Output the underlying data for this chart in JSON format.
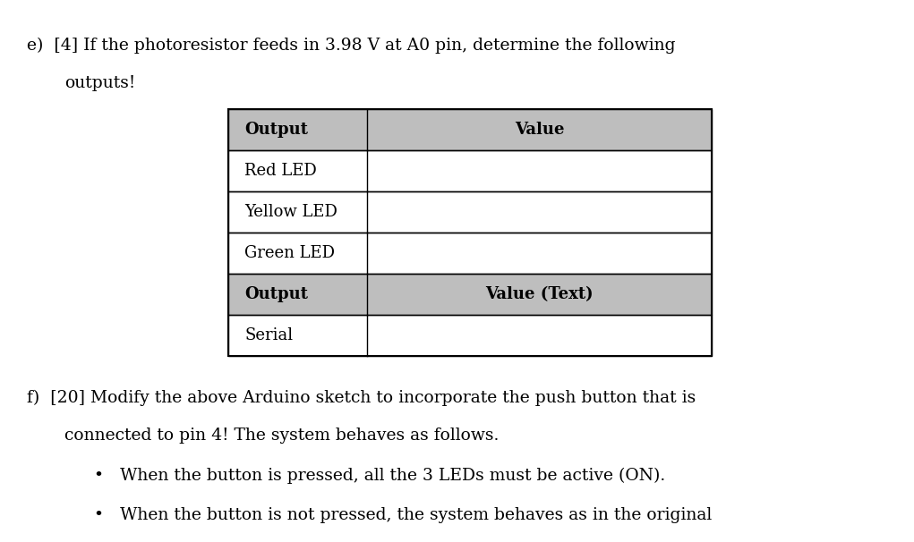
{
  "background_color": "#ffffff",
  "table_header_bg": "#bebebe",
  "table_row_bg": "#ffffff",
  "table_border_color": "#000000",
  "header_row": [
    "Output",
    "Value"
  ],
  "data_rows": [
    [
      "Red LED",
      ""
    ],
    [
      "Yellow LED",
      ""
    ],
    [
      "Green LED",
      ""
    ]
  ],
  "subheader_row": [
    "Output",
    "Value (Text)"
  ],
  "serial_row": [
    "Serial",
    ""
  ],
  "font_size_text": 13.5,
  "font_size_table": 13,
  "fig_width": 10.21,
  "fig_height": 6.06,
  "dpi": 100
}
